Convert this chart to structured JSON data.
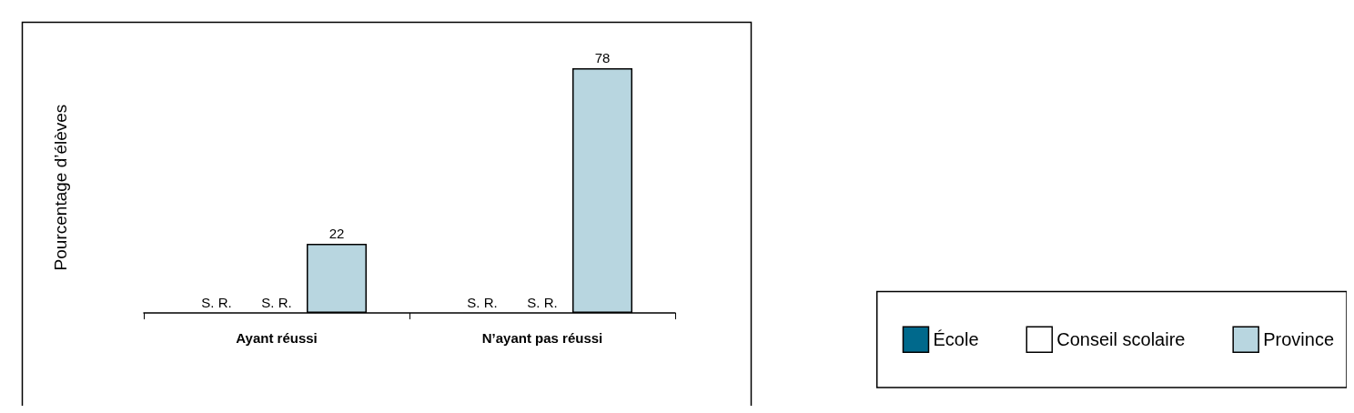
{
  "chart_data": {
    "type": "bar",
    "ylabel": "Pourcentage d’élèves",
    "categories": [
      "Ayant réussi",
      "N’ayant pas réussi"
    ],
    "series": [
      {
        "name": "École",
        "color": "#00698c",
        "values": [
          null,
          null
        ],
        "value_labels": [
          "S. R.",
          "S. R."
        ]
      },
      {
        "name": "Conseil scolaire",
        "color": "#ffffff",
        "values": [
          null,
          null
        ],
        "value_labels": [
          "S. R.",
          "S. R."
        ]
      },
      {
        "name": "Province",
        "color": "#b8d6e0",
        "values": [
          22,
          78
        ],
        "value_labels": [
          "22",
          "78"
        ]
      }
    ],
    "legend": "bottom right",
    "grid": false
  }
}
